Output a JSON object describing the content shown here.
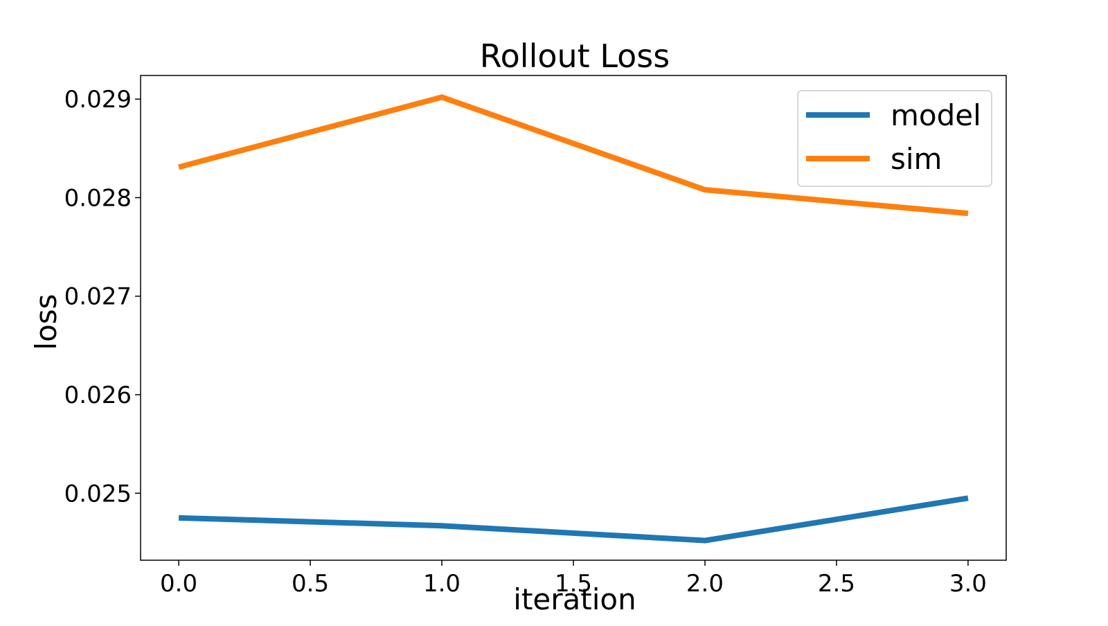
{
  "chart_data": {
    "type": "line",
    "title": "Rollout Loss",
    "xlabel": "iteration",
    "ylabel": "loss",
    "x": [
      0,
      1,
      2,
      3
    ],
    "xlim": [
      -0.145,
      3.145
    ],
    "ylim": [
      0.02432,
      0.02924
    ],
    "xticks": [
      0.0,
      0.5,
      1.0,
      1.5,
      2.0,
      2.5,
      3.0
    ],
    "xtick_labels": [
      "0.0",
      "0.5",
      "1.0",
      "1.5",
      "2.0",
      "2.5",
      "3.0"
    ],
    "yticks": [
      0.025,
      0.026,
      0.027,
      0.028,
      0.029
    ],
    "ytick_labels": [
      "0.025",
      "0.026",
      "0.027",
      "0.028",
      "0.029"
    ],
    "grid": false,
    "legend_position": "top-right",
    "series": [
      {
        "name": "model",
        "color": "#1f77b4",
        "values": [
          0.02475,
          0.02467,
          0.02452,
          0.02495
        ]
      },
      {
        "name": "sim",
        "color": "#ff7f0e",
        "values": [
          0.02831,
          0.02902,
          0.02808,
          0.02784
        ]
      }
    ]
  }
}
